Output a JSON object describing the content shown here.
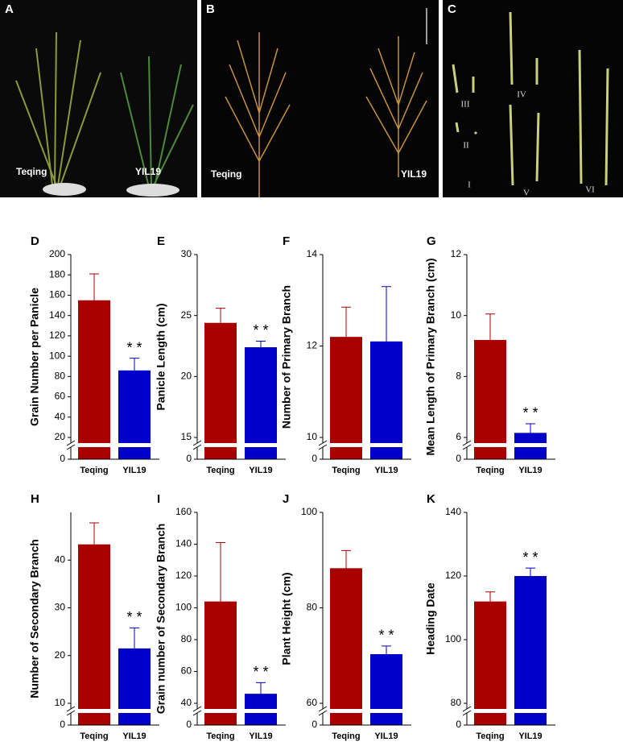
{
  "photos": [
    {
      "letter": "A",
      "labels": [
        "Teqing",
        "YIL19"
      ]
    },
    {
      "letter": "B",
      "labels": [
        "Teqing",
        "YIL19"
      ]
    },
    {
      "letter": "C",
      "labels": [
        "III",
        "IV",
        "II",
        "I",
        "V",
        "VI"
      ]
    }
  ],
  "chart_data": [
    {
      "type": "bar",
      "panel_label": "D",
      "y_label": "Grain Number per Panicle",
      "categories": [
        "Teqing",
        "YIL19"
      ],
      "values": [
        155,
        86
      ],
      "errors": [
        26,
        12
      ],
      "colors": [
        "#a80000",
        "#0000c8"
      ],
      "ylim": [
        0,
        200
      ],
      "yticks": [
        0,
        20,
        40,
        60,
        80,
        100,
        120,
        140,
        160,
        180,
        200
      ],
      "axis_break": true,
      "annotations": [
        {
          "text": "* *",
          "category": "YIL19"
        }
      ]
    },
    {
      "type": "bar",
      "panel_label": "E",
      "y_label": "Panicle Length (cm)",
      "categories": [
        "Teqing",
        "YIL19"
      ],
      "values": [
        24.4,
        22.4
      ],
      "errors": [
        1.2,
        0.5
      ],
      "colors": [
        "#a80000",
        "#0000c8"
      ],
      "ylim": [
        0,
        30
      ],
      "yticks": [
        0,
        15,
        20,
        25,
        30
      ],
      "axis_break": true,
      "annotations": [
        {
          "text": "* *",
          "category": "YIL19"
        }
      ]
    },
    {
      "type": "bar",
      "panel_label": "F",
      "y_label": "Number of Primary Branch",
      "categories": [
        "Teqing",
        "YIL19"
      ],
      "values": [
        12.2,
        12.1
      ],
      "errors": [
        0.65,
        1.2
      ],
      "colors": [
        "#a80000",
        "#0000c8"
      ],
      "ylim": [
        0,
        14
      ],
      "yticks": [
        0,
        10,
        12,
        14
      ],
      "axis_break": true,
      "annotations": []
    },
    {
      "type": "bar",
      "panel_label": "G",
      "y_label": "Mean Length of Primary Branch (cm)",
      "categories": [
        "Teqing",
        "YIL19"
      ],
      "values": [
        9.2,
        6.15
      ],
      "errors": [
        0.85,
        0.3
      ],
      "colors": [
        "#a80000",
        "#0000c8"
      ],
      "ylim": [
        0,
        12
      ],
      "yticks": [
        0,
        6,
        8,
        10,
        12
      ],
      "axis_break": true,
      "annotations": [
        {
          "text": "* *",
          "category": "YIL19"
        }
      ]
    },
    {
      "type": "bar",
      "panel_label": "H",
      "y_label": "Number of Secondary Branch",
      "categories": [
        "Teqing",
        "YIL19"
      ],
      "values": [
        43.3,
        21.5
      ],
      "errors": [
        4.5,
        4.3
      ],
      "colors": [
        "#a80000",
        "#0000c8"
      ],
      "ylim": [
        0,
        50
      ],
      "yticks": [
        0,
        10,
        20,
        30,
        40
      ],
      "axis_break": true,
      "annotations": [
        {
          "text": "* *",
          "category": "YIL19"
        }
      ]
    },
    {
      "type": "bar",
      "panel_label": "I",
      "y_label": "Grain number of Secondary Branch",
      "categories": [
        "Teqing",
        "YIL19"
      ],
      "values": [
        104,
        46
      ],
      "errors": [
        37,
        7
      ],
      "colors": [
        "#a80000",
        "#0000c8"
      ],
      "ylim": [
        0,
        160
      ],
      "yticks": [
        0,
        40,
        60,
        80,
        100,
        120,
        140,
        160
      ],
      "axis_break": true,
      "annotations": [
        {
          "text": "* *",
          "category": "YIL19"
        }
      ]
    },
    {
      "type": "bar",
      "panel_label": "J",
      "y_label": "Plant Height (cm)",
      "categories": [
        "Teqing",
        "YIL19"
      ],
      "values": [
        88.3,
        70.3
      ],
      "errors": [
        3.7,
        1.7
      ],
      "colors": [
        "#a80000",
        "#0000c8"
      ],
      "ylim": [
        0,
        100
      ],
      "yticks": [
        0,
        60,
        80,
        100
      ],
      "axis_break": true,
      "annotations": [
        {
          "text": "* *",
          "category": "YIL19"
        }
      ]
    },
    {
      "type": "bar",
      "panel_label": "K",
      "y_label": "Heading Date",
      "categories": [
        "Teqing",
        "YIL19"
      ],
      "values": [
        112,
        120
      ],
      "errors": [
        3,
        2.5
      ],
      "colors": [
        "#a80000",
        "#0000c8"
      ],
      "ylim": [
        0,
        140
      ],
      "yticks": [
        0,
        80,
        100,
        120,
        140
      ],
      "axis_break": true,
      "annotations": [
        {
          "text": "* *",
          "category": "YIL19"
        }
      ]
    }
  ]
}
